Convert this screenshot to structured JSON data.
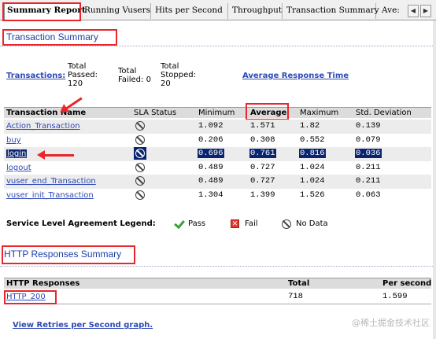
{
  "tabs": [
    {
      "label": "Summary Report",
      "active": true
    },
    {
      "label": "Running Vusers"
    },
    {
      "label": "Hits per Second"
    },
    {
      "label": "Throughput"
    },
    {
      "label": "Transaction Summary"
    },
    {
      "label": "Ave:"
    }
  ],
  "transaction_summary": {
    "title": "Transaction Summary",
    "transactions_link": "Transactions:",
    "total_passed_label": "Total Passed:",
    "total_passed_value": "120",
    "total_failed_label": "Total Failed:",
    "total_failed_value": "0",
    "total_stopped_label": "Total Stopped:",
    "total_stopped_value": "20",
    "avg_response_link": "Average Response Time",
    "columns": [
      "Transaction Name",
      "SLA Status",
      "Minimum",
      "Average",
      "Maximum",
      "Std. Deviation"
    ],
    "rows": [
      {
        "name": "Action_Transaction",
        "min": "1.092",
        "avg": "1.571",
        "max": "1.82",
        "std": "0.139"
      },
      {
        "name": "buy",
        "min": "0.206",
        "avg": "0.308",
        "max": "0.552",
        "std": "0.079"
      },
      {
        "name": "login",
        "min": "0.696",
        "avg": "0.761",
        "max": "0.816",
        "std": "0.036",
        "selected": true
      },
      {
        "name": "logout",
        "min": "0.489",
        "avg": "0.727",
        "max": "1.024",
        "std": "0.211"
      },
      {
        "name": "vuser_end_Transaction",
        "min": "0.489",
        "avg": "0.727",
        "max": "1.024",
        "std": "0.211"
      },
      {
        "name": "vuser_init_Transaction",
        "min": "1.304",
        "avg": "1.399",
        "max": "1.526",
        "std": "0.063"
      }
    ]
  },
  "sla_legend": {
    "label": "Service Level Agreement Legend:",
    "pass": "Pass",
    "fail": "Fail",
    "no_data": "No Data"
  },
  "http_summary": {
    "title": "HTTP Responses Summary",
    "columns": [
      "HTTP Responses",
      "Total",
      "Per second"
    ],
    "rows": [
      {
        "name": "HTTP_200",
        "total": "718",
        "per_second": "1.599"
      }
    ]
  },
  "retries_link": "View Retries per Second graph.",
  "watermark": "@稀土掘金技术社区",
  "colors": {
    "annotation": "#e8262b",
    "link": "#2f49b7",
    "selection": "#0a2470",
    "title": "#1a3ea8"
  }
}
